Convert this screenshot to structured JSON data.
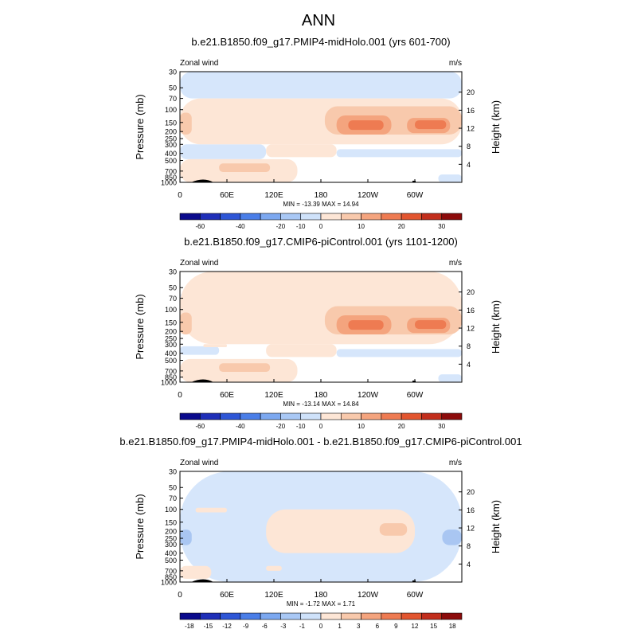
{
  "figure_title": "ANN",
  "chart_data": [
    {
      "type": "heatmap",
      "title": "b.e21.B1850.f09_g17.PMIP4-midHolo.001 (yrs 601-700)",
      "left_label": "Zonal wind",
      "right_label": "m/s",
      "ylabel": "Pressure (mb)",
      "ylabel_right": "Height (km)",
      "x_ticks": [
        "0",
        "60E",
        "120E",
        "180",
        "120W",
        "60W"
      ],
      "y_ticks": [
        "30",
        "50",
        "70",
        "100",
        "150",
        "200",
        "250",
        "300",
        "400",
        "500",
        "700",
        "850",
        "1000"
      ],
      "y_right_ticks": [
        "20",
        "16",
        "12",
        "8",
        "4"
      ],
      "stats": "MIN = -13.39  MAX =  14.94",
      "colorbar_labels": [
        "-60",
        "-40",
        "-20",
        "-10",
        "0",
        "10",
        "20",
        "30"
      ],
      "colorbar_colors": [
        "#0a0a8c",
        "#1f2fb8",
        "#2e56d6",
        "#4a7ee8",
        "#7ca8f0",
        "#a9c8f5",
        "#cfe2fa",
        "#fde6d6",
        "#f8c9ac",
        "#f4a47e",
        "#ee7b52",
        "#e2552f",
        "#c22e1c",
        "#8c0b0b"
      ],
      "x_range": [
        0,
        360
      ],
      "y_range": [
        1000,
        30
      ],
      "pressure_levels": [
        30,
        50,
        70,
        100,
        150,
        200,
        250,
        300,
        400,
        500,
        700,
        850,
        1000
      ],
      "fields": [
        {
          "level": "negative",
          "color": "#d6e6fb",
          "areas": [
            [
              0,
              30,
              360,
              70
            ],
            [
              60,
              95,
              170,
              130
            ],
            [
              0,
              300,
              110,
              480
            ],
            [
              200,
              350,
              360,
              450
            ],
            [
              330,
              780,
              360,
              1000
            ]
          ]
        },
        {
          "level": "negative",
          "color": "#a9c6f2",
          "areas": [
            [
              75,
              120,
              155,
              200
            ]
          ]
        },
        {
          "level": "positive",
          "color": "#fde6d6",
          "areas": [
            [
              0,
              70,
              360,
              300
            ],
            [
              0,
              480,
              150,
              1000
            ],
            [
              110,
              300,
              200,
              450
            ]
          ]
        },
        {
          "level": "positive",
          "color": "#f8c9ac",
          "areas": [
            [
              0,
              110,
              15,
              220
            ],
            [
              185,
              90,
              360,
              220
            ],
            [
              50,
              550,
              115,
              720
            ]
          ]
        },
        {
          "level": "positive",
          "color": "#f4a47e",
          "areas": [
            [
              200,
              120,
              270,
              220
            ],
            [
              290,
              130,
              345,
              210
            ]
          ]
        },
        {
          "level": "positive",
          "color": "#ee7b52",
          "areas": [
            [
              215,
              140,
              260,
              190
            ],
            [
              300,
              140,
              340,
              185
            ]
          ]
        }
      ]
    },
    {
      "type": "heatmap",
      "title": "b.e21.B1850.f09_g17.CMIP6-piControl.001 (yrs 1101-1200)",
      "left_label": "Zonal wind",
      "right_label": "m/s",
      "ylabel": "Pressure (mb)",
      "ylabel_right": "Height (km)",
      "x_ticks": [
        "0",
        "60E",
        "120E",
        "180",
        "120W",
        "60W"
      ],
      "y_ticks": [
        "30",
        "50",
        "70",
        "100",
        "150",
        "200",
        "250",
        "300",
        "400",
        "500",
        "700",
        "850",
        "1000"
      ],
      "y_right_ticks": [
        "20",
        "16",
        "12",
        "8",
        "4"
      ],
      "stats": "MIN = -13.14  MAX =  14.84",
      "colorbar_labels": [
        "-60",
        "-40",
        "-20",
        "-10",
        "0",
        "10",
        "20",
        "30"
      ],
      "colorbar_colors": [
        "#0a0a8c",
        "#1f2fb8",
        "#2e56d6",
        "#4a7ee8",
        "#7ca8f0",
        "#a9c8f5",
        "#cfe2fa",
        "#fde6d6",
        "#f8c9ac",
        "#f4a47e",
        "#ee7b52",
        "#e2552f",
        "#c22e1c",
        "#8c0b0b"
      ],
      "x_range": [
        0,
        360
      ],
      "y_range": [
        1000,
        30
      ],
      "pressure_levels": [
        30,
        50,
        70,
        100,
        150,
        200,
        250,
        300,
        400,
        500,
        700,
        850,
        1000
      ],
      "fields": [
        {
          "level": "negative",
          "color": "#d6e6fb",
          "areas": [
            [
              0,
              60,
              30,
              75
            ],
            [
              60,
              95,
              170,
              130
            ],
            [
              0,
              320,
              50,
              420
            ],
            [
              200,
              350,
              360,
              450
            ],
            [
              330,
              780,
              360,
              1000
            ]
          ]
        },
        {
          "level": "negative",
          "color": "#a9c6f2",
          "areas": [
            [
              75,
              120,
              155,
              200
            ]
          ]
        },
        {
          "level": "positive",
          "color": "#fde6d6",
          "areas": [
            [
              0,
              30,
              360,
              300
            ],
            [
              0,
              480,
              150,
              1000
            ],
            [
              110,
              300,
              200,
              450
            ],
            [
              30,
              300,
              60,
              330
            ]
          ]
        },
        {
          "level": "positive",
          "color": "#f8c9ac",
          "areas": [
            [
              0,
              110,
              15,
              220
            ],
            [
              185,
              90,
              360,
              220
            ],
            [
              50,
              550,
              115,
              720
            ]
          ]
        },
        {
          "level": "positive",
          "color": "#f4a47e",
          "areas": [
            [
              200,
              120,
              270,
              220
            ],
            [
              290,
              130,
              345,
              210
            ]
          ]
        },
        {
          "level": "positive",
          "color": "#ee7b52",
          "areas": [
            [
              215,
              140,
              260,
              190
            ],
            [
              300,
              140,
              340,
              185
            ]
          ]
        }
      ]
    },
    {
      "type": "heatmap",
      "title": "b.e21.B1850.f09_g17.PMIP4-midHolo.001 - b.e21.B1850.f09_g17.CMIP6-piControl.001",
      "left_label": "Zonal wind",
      "right_label": "m/s",
      "ylabel": "Pressure (mb)",
      "ylabel_right": "Height (km)",
      "x_ticks": [
        "0",
        "60E",
        "120E",
        "180",
        "120W",
        "60W"
      ],
      "y_ticks": [
        "30",
        "50",
        "70",
        "100",
        "150",
        "200",
        "250",
        "300",
        "400",
        "500",
        "700",
        "850",
        "1000"
      ],
      "y_right_ticks": [
        "20",
        "16",
        "12",
        "8",
        "4"
      ],
      "stats": "MIN = -1.72  MAX =  1.71",
      "colorbar_labels": [
        "-18",
        "-15",
        "-12",
        "-9",
        "-6",
        "-3",
        "-1",
        "0",
        "1",
        "3",
        "6",
        "9",
        "12",
        "15",
        "18"
      ],
      "colorbar_colors": [
        "#0a0a8c",
        "#1f2fb8",
        "#2e56d6",
        "#4a7ee8",
        "#7ca8f0",
        "#a9c8f5",
        "#cfe2fa",
        "#fde6d6",
        "#f8c9ac",
        "#f4a47e",
        "#ee7b52",
        "#e2552f",
        "#c22e1c",
        "#8c0b0b"
      ],
      "x_range": [
        0,
        360
      ],
      "y_range": [
        1000,
        30
      ],
      "pressure_levels": [
        30,
        50,
        70,
        100,
        150,
        200,
        250,
        300,
        400,
        500,
        700,
        850,
        1000
      ],
      "fields": [
        {
          "level": "negative",
          "color": "#d6e6fb",
          "areas": [
            [
              0,
              30,
              360,
              1000
            ]
          ]
        },
        {
          "level": "positive",
          "color": "#fde6d6",
          "areas": [
            [
              110,
              100,
              300,
              400
            ],
            [
              20,
              95,
              60,
              110
            ],
            [
              0,
              600,
              40,
              900
            ],
            [
              110,
              600,
              130,
              700
            ]
          ]
        },
        {
          "level": "positive",
          "color": "#f8c9ac",
          "areas": [
            [
              255,
              155,
              290,
              230
            ]
          ]
        },
        {
          "level": "negative",
          "color": "#a9c6f2",
          "areas": [
            [
              0,
              190,
              15,
              310
            ],
            [
              335,
              190,
              360,
              310
            ]
          ]
        }
      ]
    }
  ]
}
